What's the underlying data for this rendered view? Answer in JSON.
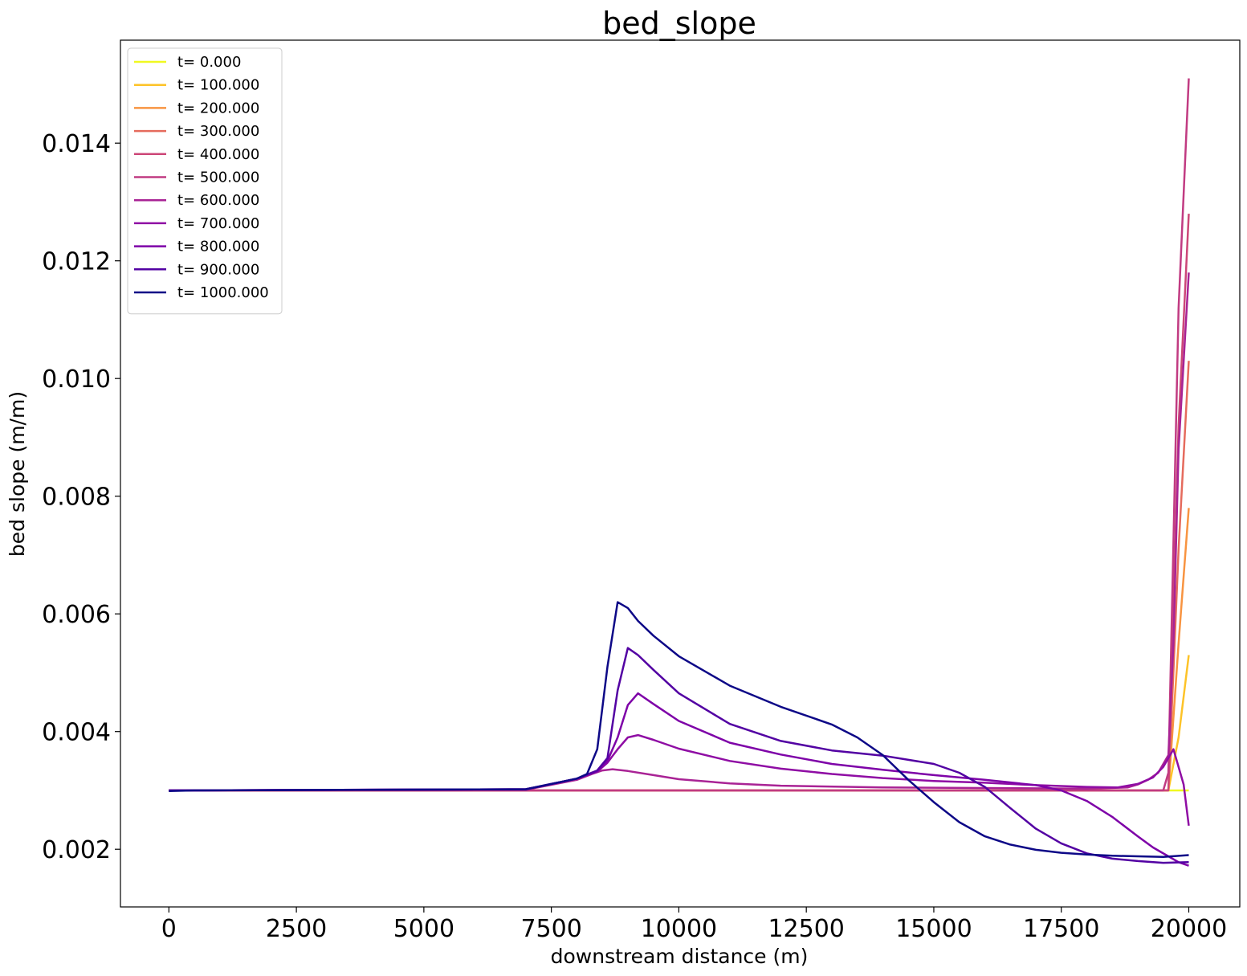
{
  "chart_data": {
    "type": "line",
    "title": "bed_slope",
    "xlabel": "downstream distance (m)",
    "ylabel": "bed slope (m/m)",
    "xlim": [
      -950,
      21000
    ],
    "ylim": [
      0.00102,
      0.01575
    ],
    "xticks": [
      0,
      2500,
      5000,
      7500,
      10000,
      12500,
      15000,
      17500,
      20000
    ],
    "xtick_labels": [
      "0",
      "2500",
      "5000",
      "7500",
      "10000",
      "12500",
      "15000",
      "17500",
      "20000"
    ],
    "yticks": [
      0.002,
      0.004,
      0.006,
      0.008,
      0.01,
      0.012,
      0.014
    ],
    "ytick_labels": [
      "0.002",
      "0.004",
      "0.006",
      "0.008",
      "0.010",
      "0.012",
      "0.014"
    ],
    "grid": false,
    "legend_position": "top-left",
    "series": [
      {
        "name": "t= 0.000",
        "color": "#f0f921",
        "points": [
          [
            0,
            0.003
          ],
          [
            19600,
            0.003
          ],
          [
            20000,
            0.003
          ]
        ]
      },
      {
        "name": "t= 100.000",
        "color": "#fdc328",
        "points": [
          [
            0,
            0.003
          ],
          [
            19600,
            0.003
          ],
          [
            19800,
            0.0039
          ],
          [
            20000,
            0.0053
          ]
        ]
      },
      {
        "name": "t= 200.000",
        "color": "#f89441",
        "points": [
          [
            0,
            0.003
          ],
          [
            19600,
            0.003
          ],
          [
            19800,
            0.0055
          ],
          [
            20000,
            0.0078
          ]
        ]
      },
      {
        "name": "t= 300.000",
        "color": "#e56b5d",
        "points": [
          [
            0,
            0.003
          ],
          [
            19600,
            0.003
          ],
          [
            19800,
            0.0071
          ],
          [
            20000,
            0.0103
          ]
        ]
      },
      {
        "name": "t= 400.000",
        "color": "#cc4778",
        "points": [
          [
            0,
            0.003
          ],
          [
            19600,
            0.003
          ],
          [
            19800,
            0.0092
          ],
          [
            20000,
            0.0128
          ]
        ]
      },
      {
        "name": "t= 500.000",
        "color": "#c13b82",
        "points": [
          [
            0,
            0.003
          ],
          [
            19500,
            0.003
          ],
          [
            19600,
            0.0033
          ],
          [
            19800,
            0.0112
          ],
          [
            20000,
            0.0151
          ]
        ]
      },
      {
        "name": "t= 600.000",
        "color": "#a92395",
        "points": [
          [
            0,
            0.003
          ],
          [
            7000,
            0.00301
          ],
          [
            8000,
            0.00318
          ],
          [
            8300,
            0.00328
          ],
          [
            8500,
            0.00334
          ],
          [
            8700,
            0.00336
          ],
          [
            9000,
            0.00333
          ],
          [
            9500,
            0.00326
          ],
          [
            10000,
            0.00319
          ],
          [
            11000,
            0.00312
          ],
          [
            12000,
            0.00308
          ],
          [
            14000,
            0.00305
          ],
          [
            16000,
            0.00304
          ],
          [
            18000,
            0.00303
          ],
          [
            18800,
            0.00305
          ],
          [
            19000,
            0.0031
          ],
          [
            19200,
            0.00318
          ],
          [
            19400,
            0.0033
          ],
          [
            19600,
            0.0036
          ],
          [
            19700,
            0.0055
          ],
          [
            19800,
            0.0088
          ],
          [
            20000,
            0.0118
          ]
        ]
      },
      {
        "name": "t= 700.000",
        "color": "#8f0da4",
        "points": [
          [
            0,
            0.003
          ],
          [
            7000,
            0.00302
          ],
          [
            8000,
            0.0032
          ],
          [
            8400,
            0.00332
          ],
          [
            8600,
            0.00347
          ],
          [
            8800,
            0.0037
          ],
          [
            9000,
            0.0039
          ],
          [
            9200,
            0.00394
          ],
          [
            9500,
            0.00386
          ],
          [
            10000,
            0.00371
          ],
          [
            11000,
            0.0035
          ],
          [
            12000,
            0.00337
          ],
          [
            13000,
            0.00328
          ],
          [
            14000,
            0.00321
          ],
          [
            15000,
            0.00316
          ],
          [
            16000,
            0.00313
          ],
          [
            17000,
            0.00309
          ],
          [
            18000,
            0.00306
          ],
          [
            18600,
            0.00305
          ],
          [
            19000,
            0.00311
          ],
          [
            19300,
            0.00322
          ],
          [
            19500,
            0.0034
          ],
          [
            19700,
            0.0037
          ],
          [
            19900,
            0.0031
          ],
          [
            20000,
            0.0024
          ]
        ]
      },
      {
        "name": "t= 800.000",
        "color": "#7e03a8",
        "points": [
          [
            0,
            0.003
          ],
          [
            7000,
            0.00302
          ],
          [
            8000,
            0.0032
          ],
          [
            8400,
            0.00332
          ],
          [
            8600,
            0.0035
          ],
          [
            8800,
            0.0039
          ],
          [
            9000,
            0.00445
          ],
          [
            9200,
            0.00465
          ],
          [
            9500,
            0.00447
          ],
          [
            10000,
            0.00418
          ],
          [
            11000,
            0.00381
          ],
          [
            12000,
            0.00361
          ],
          [
            13000,
            0.00345
          ],
          [
            14000,
            0.00335
          ],
          [
            15000,
            0.00326
          ],
          [
            16000,
            0.00318
          ],
          [
            17000,
            0.00309
          ],
          [
            17500,
            0.003
          ],
          [
            18000,
            0.00282
          ],
          [
            18500,
            0.00255
          ],
          [
            19000,
            0.00222
          ],
          [
            19300,
            0.00203
          ],
          [
            19600,
            0.00188
          ],
          [
            19800,
            0.00178
          ],
          [
            20000,
            0.00172
          ]
        ]
      },
      {
        "name": "t= 900.000",
        "color": "#5302a3",
        "points": [
          [
            0,
            0.003
          ],
          [
            7000,
            0.00302
          ],
          [
            8000,
            0.0032
          ],
          [
            8400,
            0.00334
          ],
          [
            8600,
            0.00355
          ],
          [
            8800,
            0.0047
          ],
          [
            9000,
            0.00542
          ],
          [
            9200,
            0.0053
          ],
          [
            9500,
            0.00505
          ],
          [
            10000,
            0.00465
          ],
          [
            11000,
            0.00413
          ],
          [
            12000,
            0.00384
          ],
          [
            13000,
            0.00368
          ],
          [
            14000,
            0.00359
          ],
          [
            15000,
            0.00345
          ],
          [
            15500,
            0.0033
          ],
          [
            16000,
            0.00306
          ],
          [
            16500,
            0.0027
          ],
          [
            17000,
            0.00235
          ],
          [
            17500,
            0.0021
          ],
          [
            18000,
            0.00193
          ],
          [
            18500,
            0.00184
          ],
          [
            19000,
            0.0018
          ],
          [
            19500,
            0.00177
          ],
          [
            20000,
            0.00178
          ]
        ]
      },
      {
        "name": "t= 1000.000",
        "color": "#0d0887",
        "points": [
          [
            0,
            0.00299
          ],
          [
            500,
            0.003
          ],
          [
            7000,
            0.00302
          ],
          [
            8000,
            0.0032
          ],
          [
            8200,
            0.00328
          ],
          [
            8400,
            0.0037
          ],
          [
            8600,
            0.0051
          ],
          [
            8800,
            0.0062
          ],
          [
            9000,
            0.0061
          ],
          [
            9200,
            0.00588
          ],
          [
            9500,
            0.00563
          ],
          [
            10000,
            0.00528
          ],
          [
            11000,
            0.00478
          ],
          [
            12000,
            0.00442
          ],
          [
            13000,
            0.00412
          ],
          [
            13500,
            0.0039
          ],
          [
            14000,
            0.0036
          ],
          [
            14500,
            0.00318
          ],
          [
            15000,
            0.0028
          ],
          [
            15500,
            0.00246
          ],
          [
            16000,
            0.00222
          ],
          [
            16500,
            0.00208
          ],
          [
            17000,
            0.00199
          ],
          [
            17500,
            0.00194
          ],
          [
            18000,
            0.00191
          ],
          [
            18500,
            0.00189
          ],
          [
            19000,
            0.00188
          ],
          [
            19500,
            0.00187
          ],
          [
            20000,
            0.0019
          ]
        ]
      }
    ]
  }
}
